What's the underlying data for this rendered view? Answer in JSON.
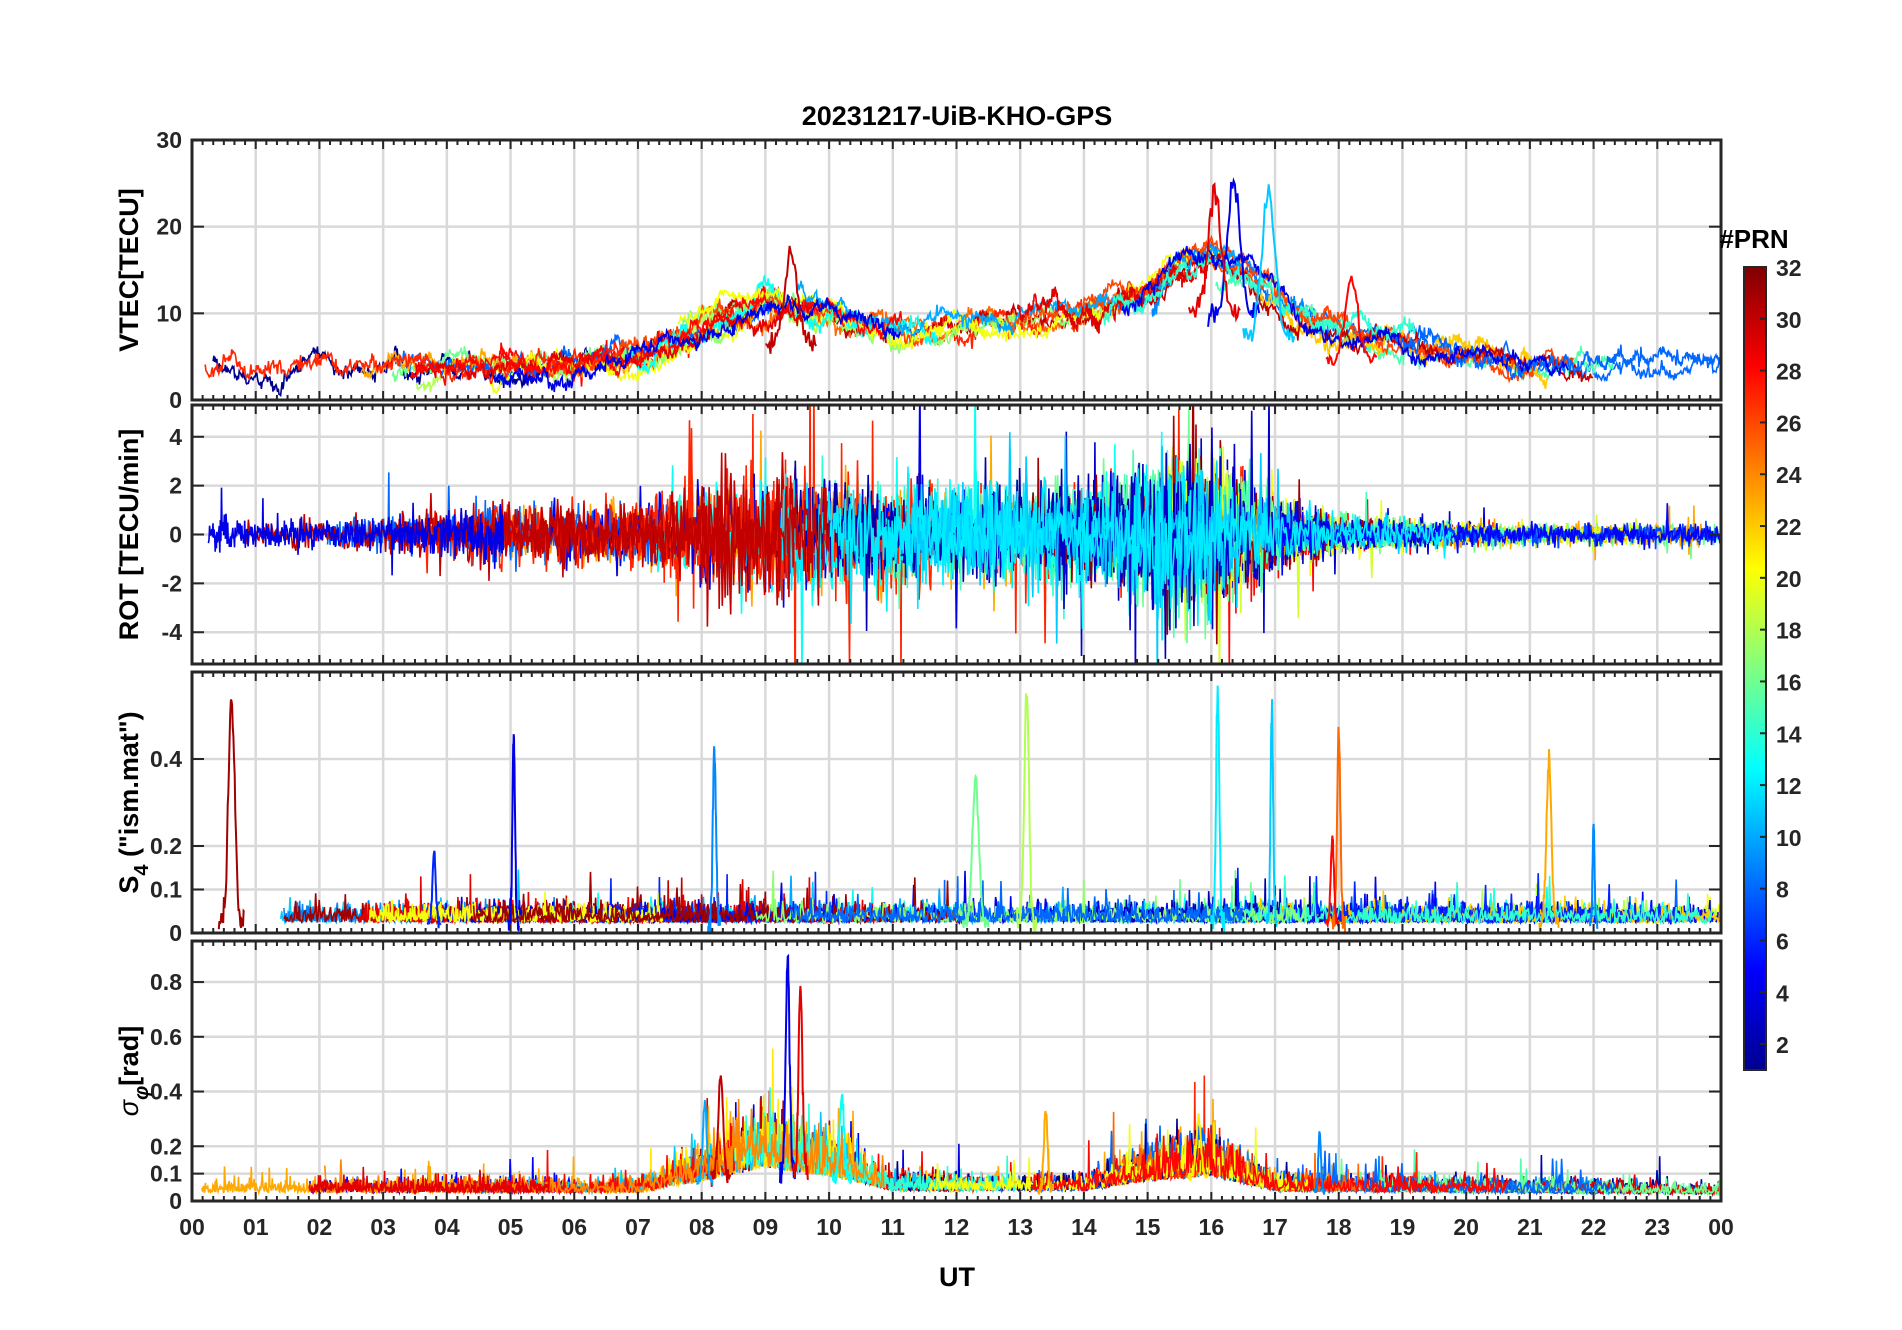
{
  "chart_data": {
    "type": "line",
    "title": "20231217-UiB-KHO-GPS",
    "xlabel": "UT",
    "x_ticks": [
      "00",
      "01",
      "02",
      "03",
      "04",
      "05",
      "06",
      "07",
      "08",
      "09",
      "10",
      "11",
      "12",
      "13",
      "14",
      "15",
      "16",
      "17",
      "18",
      "19",
      "20",
      "21",
      "22",
      "23",
      "00"
    ],
    "xlim_hours": [
      0,
      24
    ],
    "grid": true,
    "colorbar": {
      "label": "#PRN",
      "range": [
        1,
        32
      ],
      "ticks": [
        2,
        4,
        6,
        8,
        10,
        12,
        14,
        16,
        18,
        20,
        22,
        24,
        26,
        28,
        30,
        32
      ],
      "colormap": "jet",
      "stops": [
        "#00008f",
        "#0000ff",
        "#0080ff",
        "#00ffff",
        "#80ff80",
        "#ffff00",
        "#ff8000",
        "#ff0000",
        "#800000"
      ]
    },
    "panels": [
      {
        "id": "vtec",
        "ylabel": "VTEC[TECU]",
        "ylim": [
          0,
          30
        ],
        "yticks": [
          0,
          10,
          20,
          30
        ],
        "ytick_labels": [
          "0",
          "10",
          "20",
          "30"
        ],
        "envelope": [
          [
            0,
            4
          ],
          [
            1,
            4
          ],
          [
            2,
            3.5
          ],
          [
            3,
            4
          ],
          [
            4,
            4
          ],
          [
            5,
            4
          ],
          [
            6,
            4
          ],
          [
            7,
            5
          ],
          [
            8,
            8
          ],
          [
            9,
            11
          ],
          [
            10,
            10
          ],
          [
            11,
            8
          ],
          [
            12,
            8
          ],
          [
            13,
            9
          ],
          [
            14,
            10
          ],
          [
            15,
            12
          ],
          [
            15.5,
            15
          ],
          [
            16,
            17
          ],
          [
            16.5,
            15
          ],
          [
            17,
            12
          ],
          [
            17.5,
            9
          ],
          [
            18,
            8
          ],
          [
            19,
            7
          ],
          [
            20,
            5
          ],
          [
            21,
            4.5
          ],
          [
            22,
            4
          ],
          [
            23,
            4
          ],
          [
            24,
            4
          ]
        ],
        "series_count": 30,
        "peaks": [
          {
            "prn": 4,
            "x": 16.35,
            "y": 25
          },
          {
            "prn": 29,
            "x": 16.05,
            "y": 24
          },
          {
            "prn": 11,
            "x": 16.9,
            "y": 24
          },
          {
            "prn": 30,
            "x": 9.4,
            "y": 17
          },
          {
            "prn": 28,
            "x": 18.2,
            "y": 14
          }
        ]
      },
      {
        "id": "rot",
        "ylabel": "ROT [TECU/min]",
        "ylim": [
          -5.3,
          5.3
        ],
        "yticks": [
          -4,
          -2,
          0,
          2,
          4
        ],
        "ytick_labels": [
          "-4",
          "-2",
          "0",
          "2",
          "4"
        ],
        "envelope": [
          [
            0,
            0.8
          ],
          [
            1,
            0.5
          ],
          [
            2,
            0.5
          ],
          [
            3,
            0.6
          ],
          [
            4,
            0.8
          ],
          [
            5,
            1.2
          ],
          [
            6,
            1
          ],
          [
            7,
            1.2
          ],
          [
            8,
            1.8
          ],
          [
            9,
            2.2
          ],
          [
            10,
            2
          ],
          [
            11,
            1.6
          ],
          [
            12,
            1.6
          ],
          [
            13,
            1.8
          ],
          [
            14,
            1.6
          ],
          [
            15,
            2.5
          ],
          [
            16,
            2.8
          ],
          [
            17,
            1.2
          ],
          [
            18,
            0.6
          ],
          [
            19,
            0.5
          ],
          [
            20,
            0.4
          ],
          [
            21,
            0.4
          ],
          [
            22,
            0.4
          ],
          [
            23,
            0.4
          ],
          [
            24,
            0.4
          ]
        ],
        "series_count": 30,
        "peaks": []
      },
      {
        "id": "s4",
        "ylabel": "S",
        "ylabel_sub": "4",
        "ylabel_tail": " (\"ism.mat\")",
        "ylim": [
          0,
          0.6
        ],
        "yticks": [
          0,
          0.1,
          0.2,
          0.4
        ],
        "ytick_labels": [
          "0",
          "0.1",
          "0.2",
          "0.4"
        ],
        "envelope": [
          [
            0,
            0.04
          ],
          [
            24,
            0.04
          ]
        ],
        "series_count": 30,
        "peaks": [
          {
            "prn": 31,
            "x": 0.62,
            "y": 0.53,
            "w": 0.2
          },
          {
            "prn": 4,
            "x": 5.05,
            "y": 0.45,
            "w": 0.08
          },
          {
            "prn": 9,
            "x": 8.2,
            "y": 0.42,
            "w": 0.1
          },
          {
            "prn": 18,
            "x": 13.1,
            "y": 0.55,
            "w": 0.15
          },
          {
            "prn": 16,
            "x": 12.3,
            "y": 0.35,
            "w": 0.2
          },
          {
            "prn": 12,
            "x": 16.1,
            "y": 0.55,
            "w": 0.1
          },
          {
            "prn": 11,
            "x": 16.95,
            "y": 0.53,
            "w": 0.08
          },
          {
            "prn": 25,
            "x": 18.0,
            "y": 0.46,
            "w": 0.1
          },
          {
            "prn": 23,
            "x": 21.3,
            "y": 0.4,
            "w": 0.15
          },
          {
            "prn": 9,
            "x": 22.0,
            "y": 0.25,
            "w": 0.06
          },
          {
            "prn": 6,
            "x": 3.8,
            "y": 0.19,
            "w": 0.1
          },
          {
            "prn": 28,
            "x": 17.9,
            "y": 0.22,
            "w": 0.1
          }
        ]
      },
      {
        "id": "sigma_phi",
        "ylabel": "σ",
        "ylabel_sub": "φ",
        "ylabel_tail": "[rad]",
        "ylim": [
          0,
          0.95
        ],
        "yticks": [
          0,
          0.1,
          0.2,
          0.4,
          0.6,
          0.8
        ],
        "ytick_labels": [
          "0",
          "0.1",
          "0.2",
          "0.4",
          "0.6",
          "0.8"
        ],
        "envelope": [
          [
            0,
            0.05
          ],
          [
            7,
            0.05
          ],
          [
            8,
            0.12
          ],
          [
            9,
            0.2
          ],
          [
            10,
            0.15
          ],
          [
            11,
            0.06
          ],
          [
            14,
            0.06
          ],
          [
            15,
            0.12
          ],
          [
            16,
            0.15
          ],
          [
            17,
            0.06
          ],
          [
            24,
            0.04
          ]
        ],
        "series_count": 30,
        "peaks": [
          {
            "prn": 4,
            "x": 9.35,
            "y": 0.88,
            "w": 0.12
          },
          {
            "prn": 29,
            "x": 9.55,
            "y": 0.78,
            "w": 0.12
          },
          {
            "prn": 30,
            "x": 8.3,
            "y": 0.45,
            "w": 0.15
          },
          {
            "prn": 10,
            "x": 8.05,
            "y": 0.35,
            "w": 0.12
          },
          {
            "prn": 13,
            "x": 10.2,
            "y": 0.38,
            "w": 0.15
          },
          {
            "prn": 23,
            "x": 13.4,
            "y": 0.33,
            "w": 0.12
          },
          {
            "prn": 21,
            "x": 15.8,
            "y": 0.3,
            "w": 0.15
          },
          {
            "prn": 9,
            "x": 17.7,
            "y": 0.25,
            "w": 0.08
          }
        ]
      }
    ]
  }
}
